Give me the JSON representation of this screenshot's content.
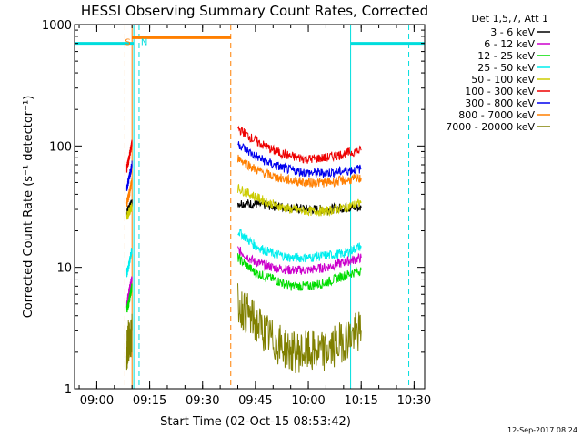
{
  "chart_data": {
    "type": "line",
    "title": "HESSI Observing Summary Count Rates, Corrected",
    "xlabel": "Start Time (02-Oct-15 08:53:42)",
    "ylabel": "Corrected Count Rate (s⁻¹ detector⁻¹)",
    "yscale": "log",
    "ylim": [
      1,
      1000
    ],
    "xlim": [
      "08:53:42",
      "10:33:00"
    ],
    "x_ticks": [
      "09:00",
      "09:15",
      "09:30",
      "09:45",
      "10:00",
      "10:15",
      "10:30"
    ],
    "y_ticks": [
      "1",
      "10",
      "100",
      "1000"
    ],
    "legend_title": "Det 1,5,7, Att 1",
    "legend_position": "top-right outside",
    "series": [
      {
        "name": "3 - 6 keV",
        "color": "#000000",
        "segments": [
          {
            "x": [
              "09:08:30",
              "09:09:00",
              "09:09:30",
              "09:10:00"
            ],
            "y": [
              28,
              30,
              32,
              34
            ]
          },
          {
            "x": [
              "09:40:00",
              "09:45:00",
              "09:50:00",
              "09:55:00",
              "10:00:00",
              "10:05:00",
              "10:10:00",
              "10:15:00"
            ],
            "y": [
              34,
              33,
              32,
              31,
              30,
              30,
              31,
              31
            ]
          }
        ]
      },
      {
        "name": "6 - 12 keV",
        "color": "#cc00cc",
        "segments": [
          {
            "x": [
              "09:08:30",
              "09:09:00",
              "09:09:30",
              "09:10:00"
            ],
            "y": [
              5,
              6,
              7,
              8
            ]
          },
          {
            "x": [
              "09:40:00",
              "09:45:00",
              "09:50:00",
              "09:55:00",
              "10:00:00",
              "10:05:00",
              "10:10:00",
              "10:15:00"
            ],
            "y": [
              14,
              11,
              10,
              9.5,
              9.5,
              10,
              11,
              12
            ]
          }
        ]
      },
      {
        "name": "12 - 25 keV",
        "color": "#00dd00",
        "segments": [
          {
            "x": [
              "09:08:30",
              "09:09:00",
              "09:09:30",
              "09:10:00"
            ],
            "y": [
              4.5,
              5,
              6,
              7
            ]
          },
          {
            "x": [
              "09:40:00",
              "09:45:00",
              "09:50:00",
              "09:55:00",
              "10:00:00",
              "10:05:00",
              "10:10:00",
              "10:15:00"
            ],
            "y": [
              12,
              9,
              8,
              7,
              7,
              7.5,
              8.5,
              9.5
            ]
          }
        ]
      },
      {
        "name": "25 - 50 keV",
        "color": "#00eeee",
        "segments": [
          {
            "x": [
              "09:08:30",
              "09:09:00",
              "09:09:30",
              "09:10:00"
            ],
            "y": [
              9,
              10,
              12,
              14
            ]
          },
          {
            "x": [
              "09:40:00",
              "09:45:00",
              "09:50:00",
              "09:55:00",
              "10:00:00",
              "10:05:00",
              "10:10:00",
              "10:15:00"
            ],
            "y": [
              20,
              15,
              13,
              12,
              12,
              12.5,
              13,
              15
            ]
          }
        ]
      },
      {
        "name": "50 - 100 keV",
        "color": "#cccc00",
        "segments": [
          {
            "x": [
              "09:08:30",
              "09:09:00",
              "09:09:30",
              "09:10:00"
            ],
            "y": [
              26,
              28,
              30,
              32
            ]
          },
          {
            "x": [
              "09:40:00",
              "09:45:00",
              "09:50:00",
              "09:55:00",
              "10:00:00",
              "10:05:00",
              "10:10:00",
              "10:15:00"
            ],
            "y": [
              45,
              38,
              33,
              30,
              29,
              29,
              31,
              34
            ]
          }
        ]
      },
      {
        "name": "100 - 300 keV",
        "color": "#ee0000",
        "segments": [
          {
            "x": [
              "09:08:30",
              "09:09:00",
              "09:09:30",
              "09:10:00"
            ],
            "y": [
              65,
              75,
              90,
              105
            ]
          },
          {
            "x": [
              "09:40:00",
              "09:45:00",
              "09:50:00",
              "09:55:00",
              "10:00:00",
              "10:05:00",
              "10:10:00",
              "10:15:00"
            ],
            "y": [
              140,
              110,
              92,
              82,
              78,
              80,
              86,
              92
            ]
          }
        ]
      },
      {
        "name": "300 - 800 keV",
        "color": "#0000ee",
        "segments": [
          {
            "x": [
              "09:08:30",
              "09:09:00",
              "09:09:30",
              "09:10:00"
            ],
            "y": [
              45,
              52,
              60,
              70
            ]
          },
          {
            "x": [
              "09:40:00",
              "09:45:00",
              "09:50:00",
              "09:55:00",
              "10:00:00",
              "10:05:00",
              "10:10:00",
              "10:15:00"
            ],
            "y": [
              105,
              82,
              70,
              63,
              60,
              60,
              62,
              65
            ]
          }
        ]
      },
      {
        "name": "800 - 7000 keV",
        "color": "#ff7f00",
        "segments": [
          {
            "x": [
              "09:08:30",
              "09:09:00",
              "09:09:30",
              "09:10:00"
            ],
            "y": [
              34,
              38,
              44,
              52
            ]
          },
          {
            "x": [
              "09:40:00",
              "09:45:00",
              "09:50:00",
              "09:55:00",
              "10:00:00",
              "10:05:00",
              "10:10:00",
              "10:15:00"
            ],
            "y": [
              80,
              64,
              56,
              52,
              50,
              50,
              52,
              54
            ]
          }
        ]
      },
      {
        "name": "7000 - 20000 keV",
        "color": "#808000",
        "segments": [
          {
            "x": [
              "09:08:30",
              "09:09:00",
              "09:09:30",
              "09:10:00"
            ],
            "y": [
              2,
              2.5,
              2.5,
              3
            ]
          },
          {
            "x": [
              "09:40:00",
              "09:45:00",
              "09:50:00",
              "09:55:00",
              "10:00:00",
              "10:05:00",
              "10:10:00",
              "10:15:00"
            ],
            "y": [
              5,
              3.5,
              2.5,
              2,
              2,
              2,
              2.5,
              3
            ]
          }
        ]
      }
    ],
    "annotations": {
      "night_intervals": {
        "color": "#00dddd",
        "bars": [
          [
            "08:53:42",
            "09:10:30"
          ],
          [
            "10:12:00",
            "10:33:00"
          ]
        ],
        "value": 700,
        "label": "N",
        "label_at": "09:12:30",
        "solid_lines": [
          "09:10:30",
          "10:12:00"
        ],
        "dashed_lines": [
          "09:12:00",
          "10:28:30"
        ]
      },
      "saa_interval": {
        "color": "#ff7f00",
        "bar": [
          "09:10:00",
          "09:38:00"
        ],
        "value": 780,
        "label": "S",
        "label_at": "09:09:00",
        "solid_lines": [
          "09:10:00"
        ],
        "dashed_lines": [
          "09:08:00",
          "09:38:00"
        ]
      }
    },
    "footer_stamp": "12-Sep-2017 08:24"
  }
}
